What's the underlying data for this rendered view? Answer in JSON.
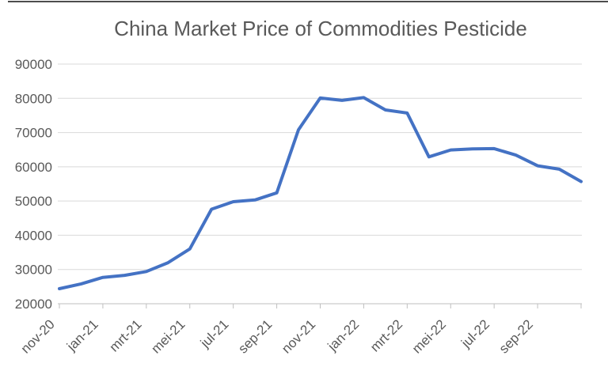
{
  "window": {
    "top_border_color": "#4d4d4d"
  },
  "chart_data": {
    "type": "line",
    "title": "China Market Price of Commodities Pesticide",
    "xlabel": "",
    "ylabel": "",
    "categories": [
      "nov-20",
      "dec-20",
      "jan-21",
      "feb-21",
      "mrt-21",
      "apr-21",
      "mei-21",
      "jun-21",
      "jul-21",
      "aug-21",
      "sep-21",
      "okt-21",
      "nov-21",
      "dec-21",
      "jan-22",
      "feb-22",
      "mrt-22",
      "apr-22",
      "mei-22",
      "jun-22",
      "jul-22",
      "aug-22",
      "sep-22",
      "okt-22",
      "nov-22"
    ],
    "values": [
      24400,
      25800,
      27700,
      28300,
      29400,
      32000,
      36000,
      47600,
      49800,
      50300,
      52400,
      70800,
      80100,
      79400,
      80200,
      76600,
      75700,
      62900,
      64900,
      65200,
      65300,
      63400,
      60300,
      59300,
      55700
    ],
    "x_tick_indices": [
      0,
      2,
      4,
      6,
      8,
      10,
      12,
      14,
      16,
      18,
      20,
      22
    ],
    "x_tick_labels": [
      "nov-20",
      "jan-21",
      "mrt-21",
      "mei-21",
      "jul-21",
      "sep-21",
      "nov-21",
      "jan-22",
      "mrt-22",
      "mei-22",
      "jul-22",
      "sep-22"
    ],
    "y_ticks": [
      20000,
      30000,
      40000,
      50000,
      60000,
      70000,
      80000,
      90000
    ],
    "ylim": [
      20000,
      90000
    ],
    "grid": "horizontal",
    "legend": "none",
    "colors": {
      "line": "#4472C4",
      "gridline": "#D9D9D9",
      "axis": "#BFBFBF",
      "tick_label": "#595959",
      "title": "#595959"
    }
  }
}
